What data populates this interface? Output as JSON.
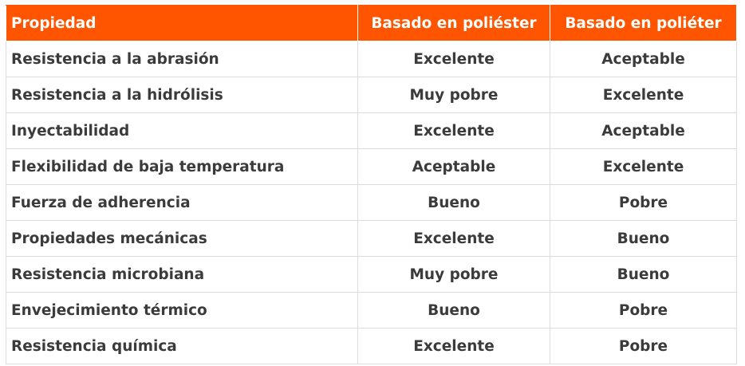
{
  "colors": {
    "header_bg": "#ff5500",
    "header_text": "#ffffff",
    "body_text": "#3b3b3b"
  },
  "headers": [
    "Propiedad",
    "Basado en poliéster",
    "Basado en poliéter"
  ],
  "rows": [
    [
      "Resistencia a la abrasión",
      "Excelente",
      "Aceptable"
    ],
    [
      "Resistencia a la hidrólisis",
      "Muy pobre",
      "Excelente"
    ],
    [
      "Inyectabilidad",
      "Excelente",
      "Aceptable"
    ],
    [
      "Flexibilidad de baja temperatura",
      "Aceptable",
      "Excelente"
    ],
    [
      "Fuerza de adherencia",
      "Bueno",
      "Pobre"
    ],
    [
      "Propiedades mecánicas",
      "Excelente",
      "Bueno"
    ],
    [
      "Resistencia microbiana",
      "Muy pobre",
      "Bueno"
    ],
    [
      "Envejecimiento térmico",
      "Bueno",
      "Pobre"
    ],
    [
      "Resistencia química",
      "Excelente",
      "Pobre"
    ]
  ]
}
